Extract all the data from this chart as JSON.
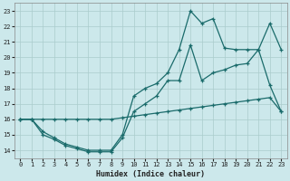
{
  "xlabel": "Humidex (Indice chaleur)",
  "bg_color": "#cce8eb",
  "grid_color": "#aacccc",
  "line_color": "#1a6b6b",
  "xlim": [
    -0.5,
    23.5
  ],
  "ylim": [
    13.5,
    23.5
  ],
  "xticks": [
    0,
    1,
    2,
    3,
    4,
    5,
    6,
    7,
    8,
    9,
    10,
    11,
    12,
    13,
    14,
    15,
    16,
    17,
    18,
    19,
    20,
    21,
    22,
    23
  ],
  "yticks": [
    14,
    15,
    16,
    17,
    18,
    19,
    20,
    21,
    22,
    23
  ],
  "line1_x": [
    0,
    1,
    2,
    3,
    4,
    5,
    6,
    7,
    8,
    9,
    10,
    11,
    12,
    13,
    14,
    15,
    16,
    17,
    18,
    19,
    20,
    21,
    22,
    23
  ],
  "line1_y": [
    16.0,
    16.0,
    16.0,
    16.0,
    16.0,
    16.0,
    16.0,
    16.0,
    16.0,
    16.1,
    16.2,
    16.3,
    16.4,
    16.5,
    16.6,
    16.7,
    16.8,
    16.9,
    17.0,
    17.1,
    17.2,
    17.3,
    17.4,
    16.5
  ],
  "line2_x": [
    0,
    1,
    2,
    3,
    4,
    5,
    6,
    7,
    8,
    9,
    10,
    11,
    12,
    13,
    14,
    15,
    16,
    17,
    18,
    19,
    20,
    21,
    22,
    23
  ],
  "line2_y": [
    16.0,
    16.0,
    15.0,
    14.7,
    14.3,
    14.1,
    13.9,
    13.9,
    13.9,
    14.8,
    16.5,
    17.0,
    17.5,
    18.5,
    18.5,
    20.8,
    18.5,
    19.0,
    19.2,
    19.5,
    19.6,
    20.5,
    18.2,
    16.5
  ],
  "line3_x": [
    0,
    1,
    2,
    3,
    4,
    5,
    6,
    7,
    8,
    9,
    10,
    11,
    12,
    13,
    14,
    15,
    16,
    17,
    18,
    19,
    20,
    21,
    22,
    23
  ],
  "line3_y": [
    16.0,
    16.0,
    15.2,
    14.8,
    14.4,
    14.2,
    14.0,
    14.0,
    14.0,
    15.0,
    17.5,
    18.0,
    18.3,
    19.0,
    20.5,
    23.0,
    22.2,
    22.5,
    20.6,
    20.5,
    20.5,
    20.5,
    22.2,
    20.5
  ]
}
